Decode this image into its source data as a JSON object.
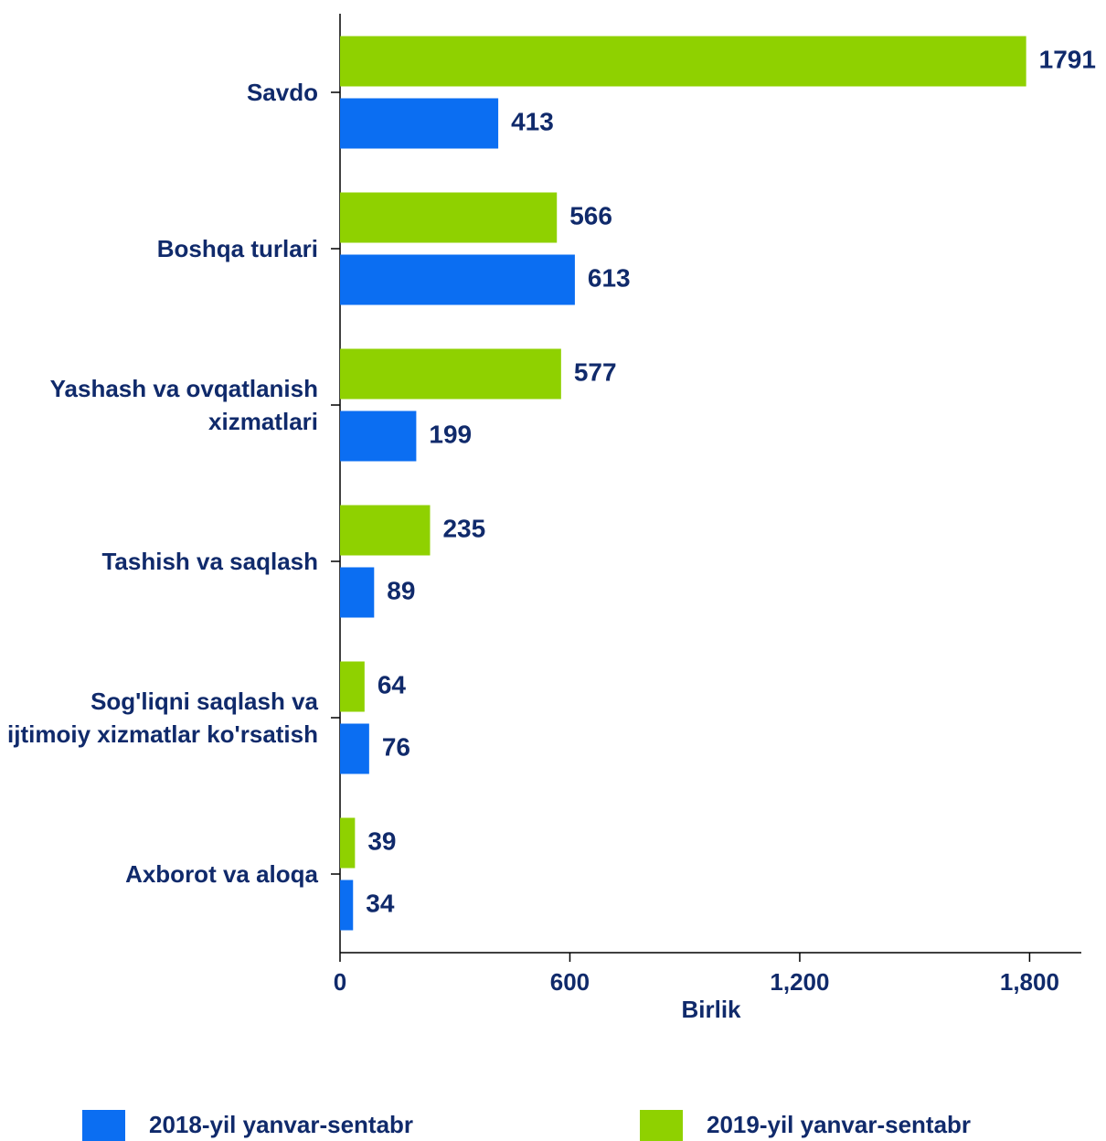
{
  "chart_data": {
    "type": "bar",
    "orientation": "horizontal",
    "categories": [
      "Savdo",
      "Boshqa turlari",
      "Yashash va ovqatlanish xizmatlari",
      "Tashish va saqlash",
      "Sog'liqni saqlash va ijtimoiy xizmatlar ko'rsatish",
      "Axborot va aloqa"
    ],
    "series": [
      {
        "name": "2018-yil yanvar-sentabr",
        "color": "#0b6ef2",
        "values": [
          413,
          613,
          199,
          89,
          76,
          34
        ]
      },
      {
        "name": "2019-yil yanvar-sentabr",
        "color": "#8fd100",
        "values": [
          1791,
          566,
          577,
          235,
          64,
          39
        ]
      }
    ],
    "x_label": "Birlik",
    "xlim": [
      0,
      1935
    ],
    "xticks": [
      0,
      600,
      {
        "value": 1200,
        "label": "1,200"
      },
      {
        "value": 1800,
        "label": "1,800"
      }
    ],
    "legend": "bottom"
  }
}
